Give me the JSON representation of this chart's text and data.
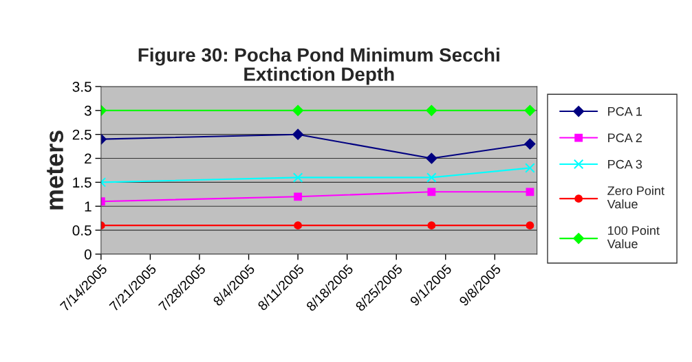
{
  "chart_data": {
    "type": "line",
    "title": "Figure 30: Pocha Pond Minimum Secchi Extinction Depth",
    "ylabel": "meters",
    "x": [
      "2005-07-14",
      "2005-08-11",
      "2005-08-30",
      "2005-09-13"
    ],
    "series": [
      {
        "name": "PCA 1",
        "color": "#000080",
        "marker": "diamond",
        "values": [
          2.4,
          2.5,
          2.0,
          2.3
        ]
      },
      {
        "name": "PCA 2",
        "color": "#ff00ff",
        "marker": "square",
        "values": [
          1.1,
          1.2,
          1.3,
          1.3
        ]
      },
      {
        "name": "PCA 3",
        "color": "#00ffff",
        "marker": "cross",
        "values": [
          1.5,
          1.6,
          1.6,
          1.8
        ]
      },
      {
        "name": "Zero Point Value",
        "color": "#ff0000",
        "marker": "circle",
        "values": [
          0.6,
          0.6,
          0.6,
          0.6
        ]
      },
      {
        "name": "100 Point Value",
        "color": "#00ff00",
        "marker": "diamond",
        "values": [
          3,
          3,
          3,
          3
        ]
      }
    ],
    "xlim": [
      "2005-07-14",
      "2005-09-14"
    ],
    "xticks": [
      {
        "value": "2005-07-14",
        "label": "7/14/2005"
      },
      {
        "value": "2005-07-21",
        "label": "7/21/2005"
      },
      {
        "value": "2005-07-28",
        "label": "7/28/2005"
      },
      {
        "value": "2005-08-04",
        "label": "8/4/2005"
      },
      {
        "value": "2005-08-11",
        "label": "8/11/2005"
      },
      {
        "value": "2005-08-18",
        "label": "8/18/2005"
      },
      {
        "value": "2005-08-25",
        "label": "8/25/2005"
      },
      {
        "value": "2005-09-01",
        "label": "9/1/2005"
      },
      {
        "value": "2005-09-08",
        "label": "9/8/2005"
      }
    ],
    "ylim": [
      0,
      3.5
    ],
    "yticks": [
      0,
      0.5,
      1,
      1.5,
      2,
      2.5,
      3,
      3.5
    ],
    "grid": "y",
    "legend": "right",
    "line_style": "solid"
  }
}
